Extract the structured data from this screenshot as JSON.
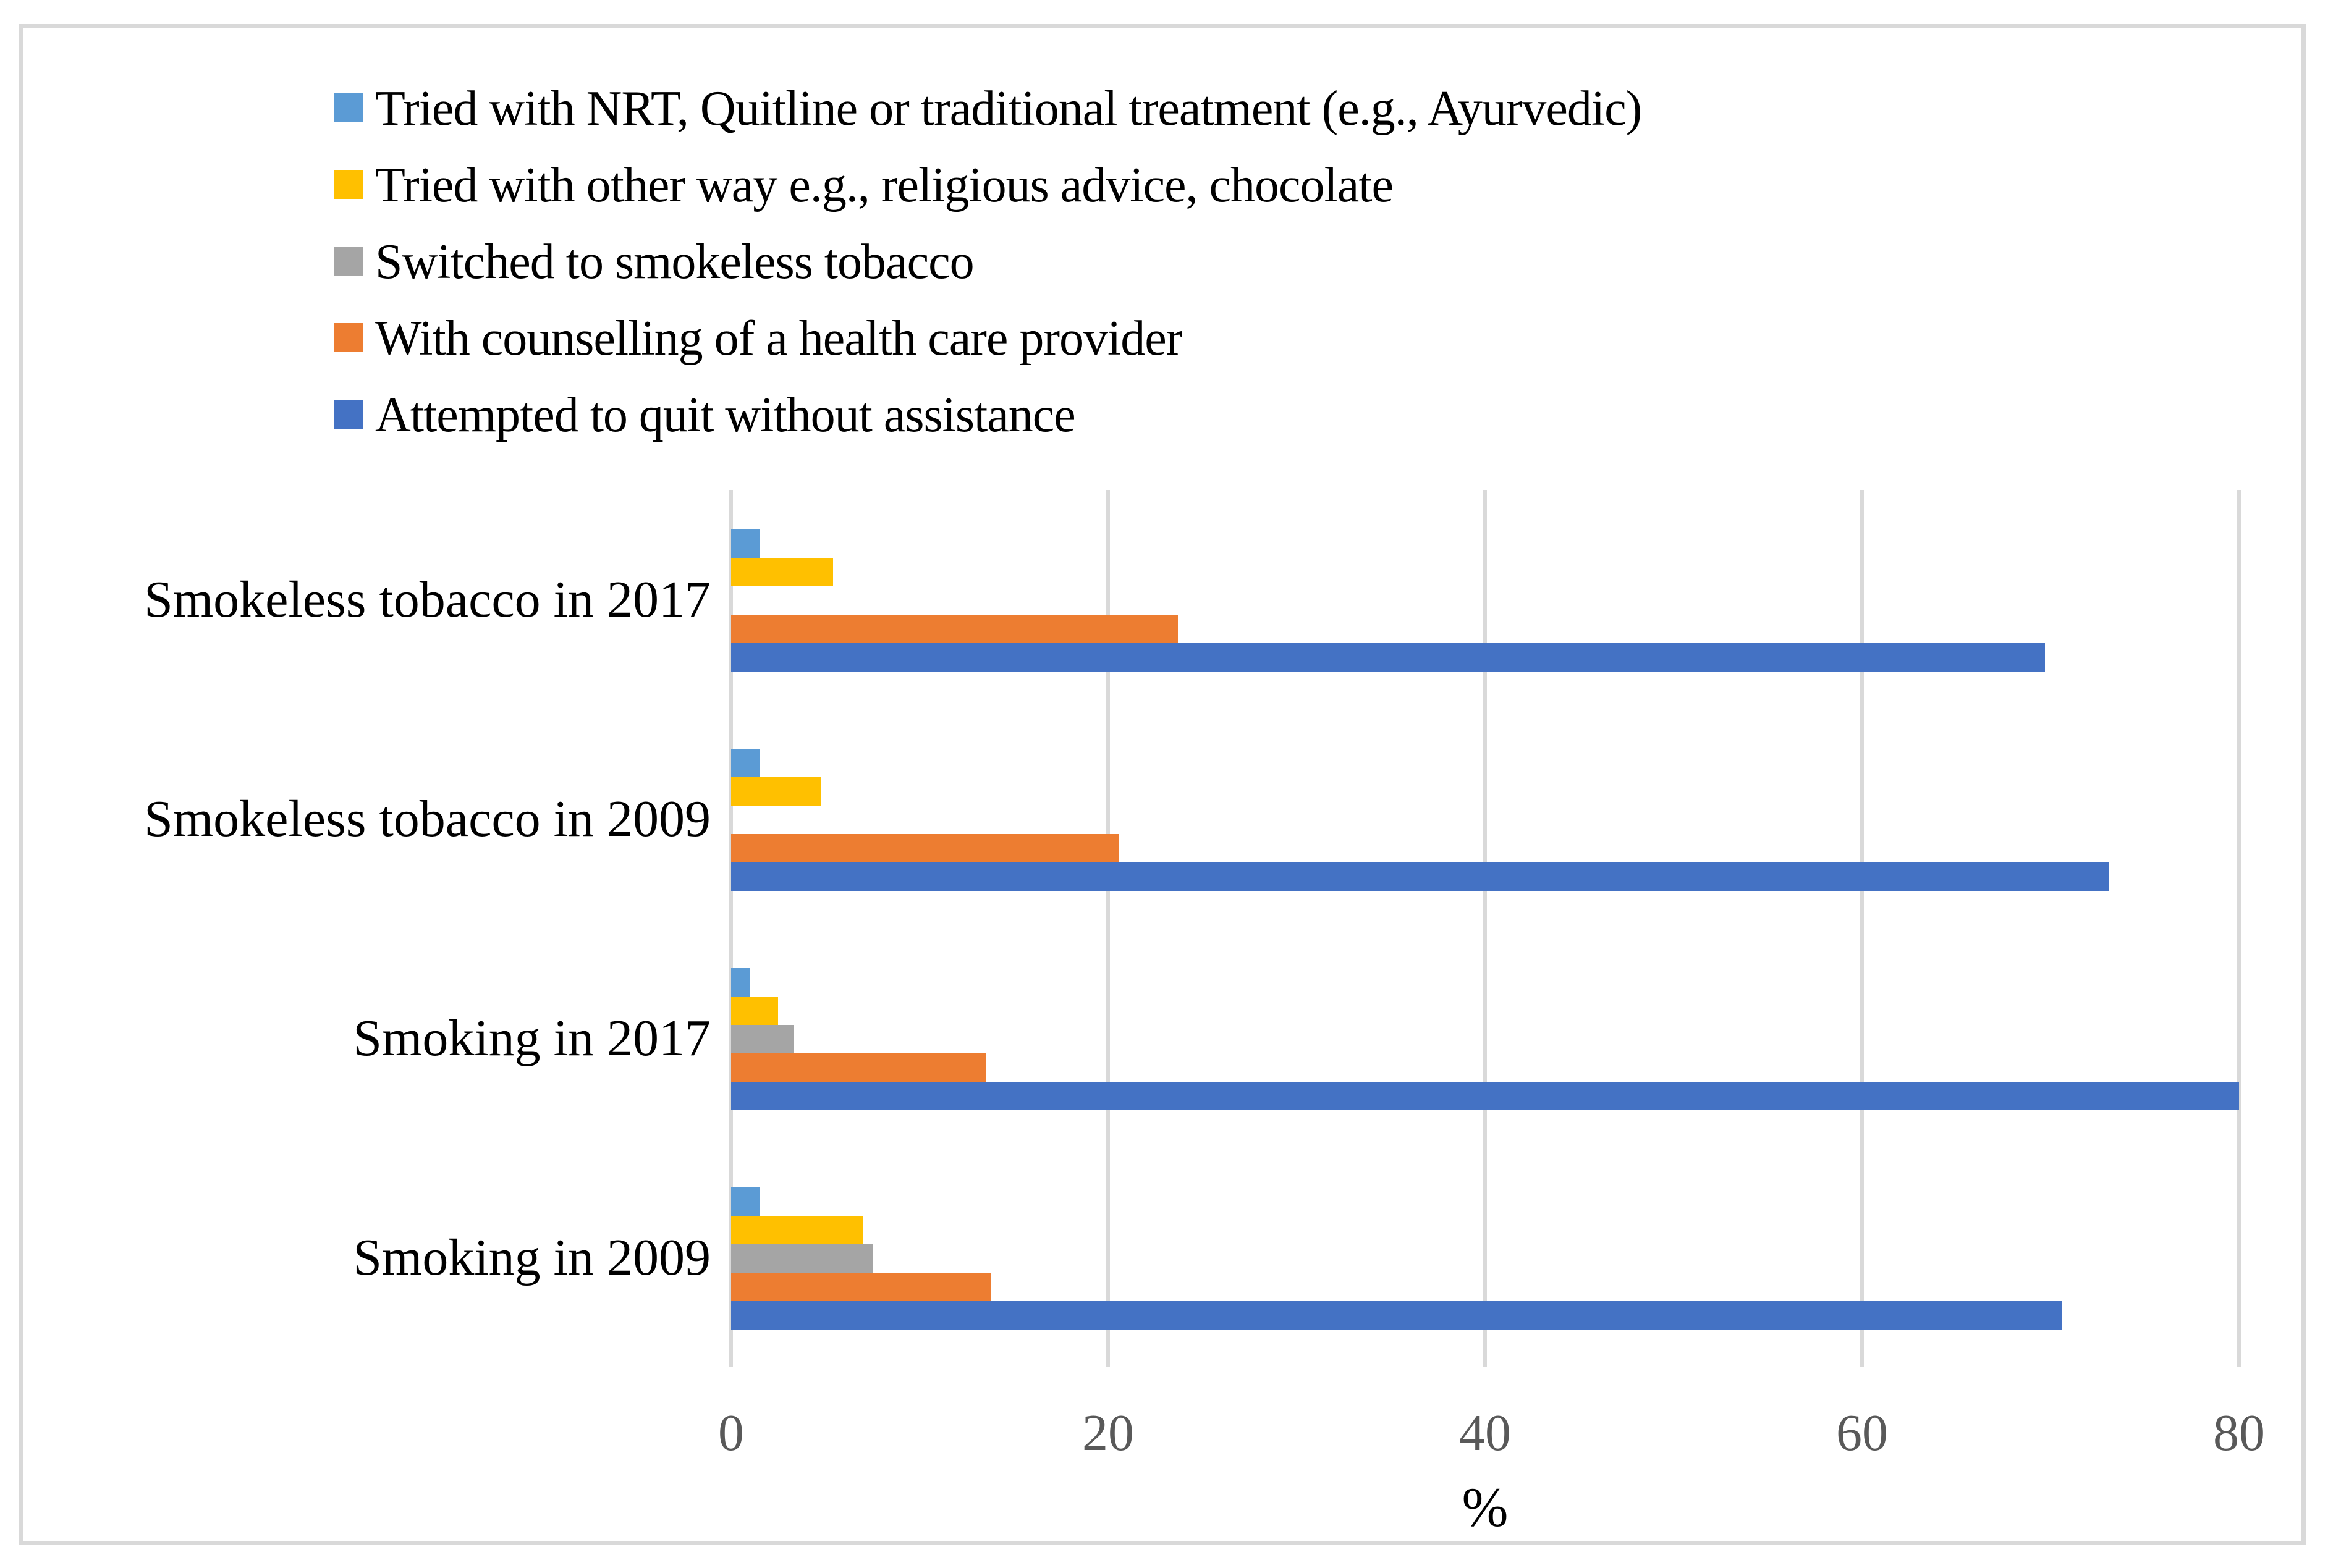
{
  "figure": {
    "background_color": "#FFFFFF",
    "border_color": "#D9D9D9"
  },
  "chart_data": {
    "type": "bar",
    "orientation": "horizontal",
    "title": "",
    "xlabel": "%",
    "ylabel": "",
    "xlim": [
      0,
      80
    ],
    "x_ticks": [
      0,
      20,
      40,
      60,
      80
    ],
    "grid": true,
    "gridline_color": "#D9D9D9",
    "tick_label_color": "#595959",
    "legend_position": "top-left",
    "categories": [
      "Smokeless tobacco in 2017",
      "Smokeless tobacco in 2009",
      "Smoking in 2017",
      "Smoking in 2009"
    ],
    "series": [
      {
        "name": "Tried with NRT, Quitline or traditional treatment (e.g., Ayurvedic)",
        "color": "#5B9BD5",
        "values": [
          1.5,
          1.5,
          1.0,
          1.5
        ]
      },
      {
        "name": "Tried with other way e.g., religious advice, chocolate",
        "color": "#FFC000",
        "values": [
          5.4,
          4.8,
          2.5,
          7.0
        ]
      },
      {
        "name": "Switched to smokeless tobacco",
        "color": "#A5A5A5",
        "values": [
          0,
          0,
          3.3,
          7.5
        ]
      },
      {
        "name": "With counselling of a health care provider",
        "color": "#ED7D31",
        "values": [
          23.7,
          20.6,
          13.5,
          13.8
        ]
      },
      {
        "name": "Attempted to quit without assistance",
        "color": "#4472C4",
        "values": [
          69.7,
          73.1,
          80.0,
          70.6
        ]
      }
    ]
  }
}
